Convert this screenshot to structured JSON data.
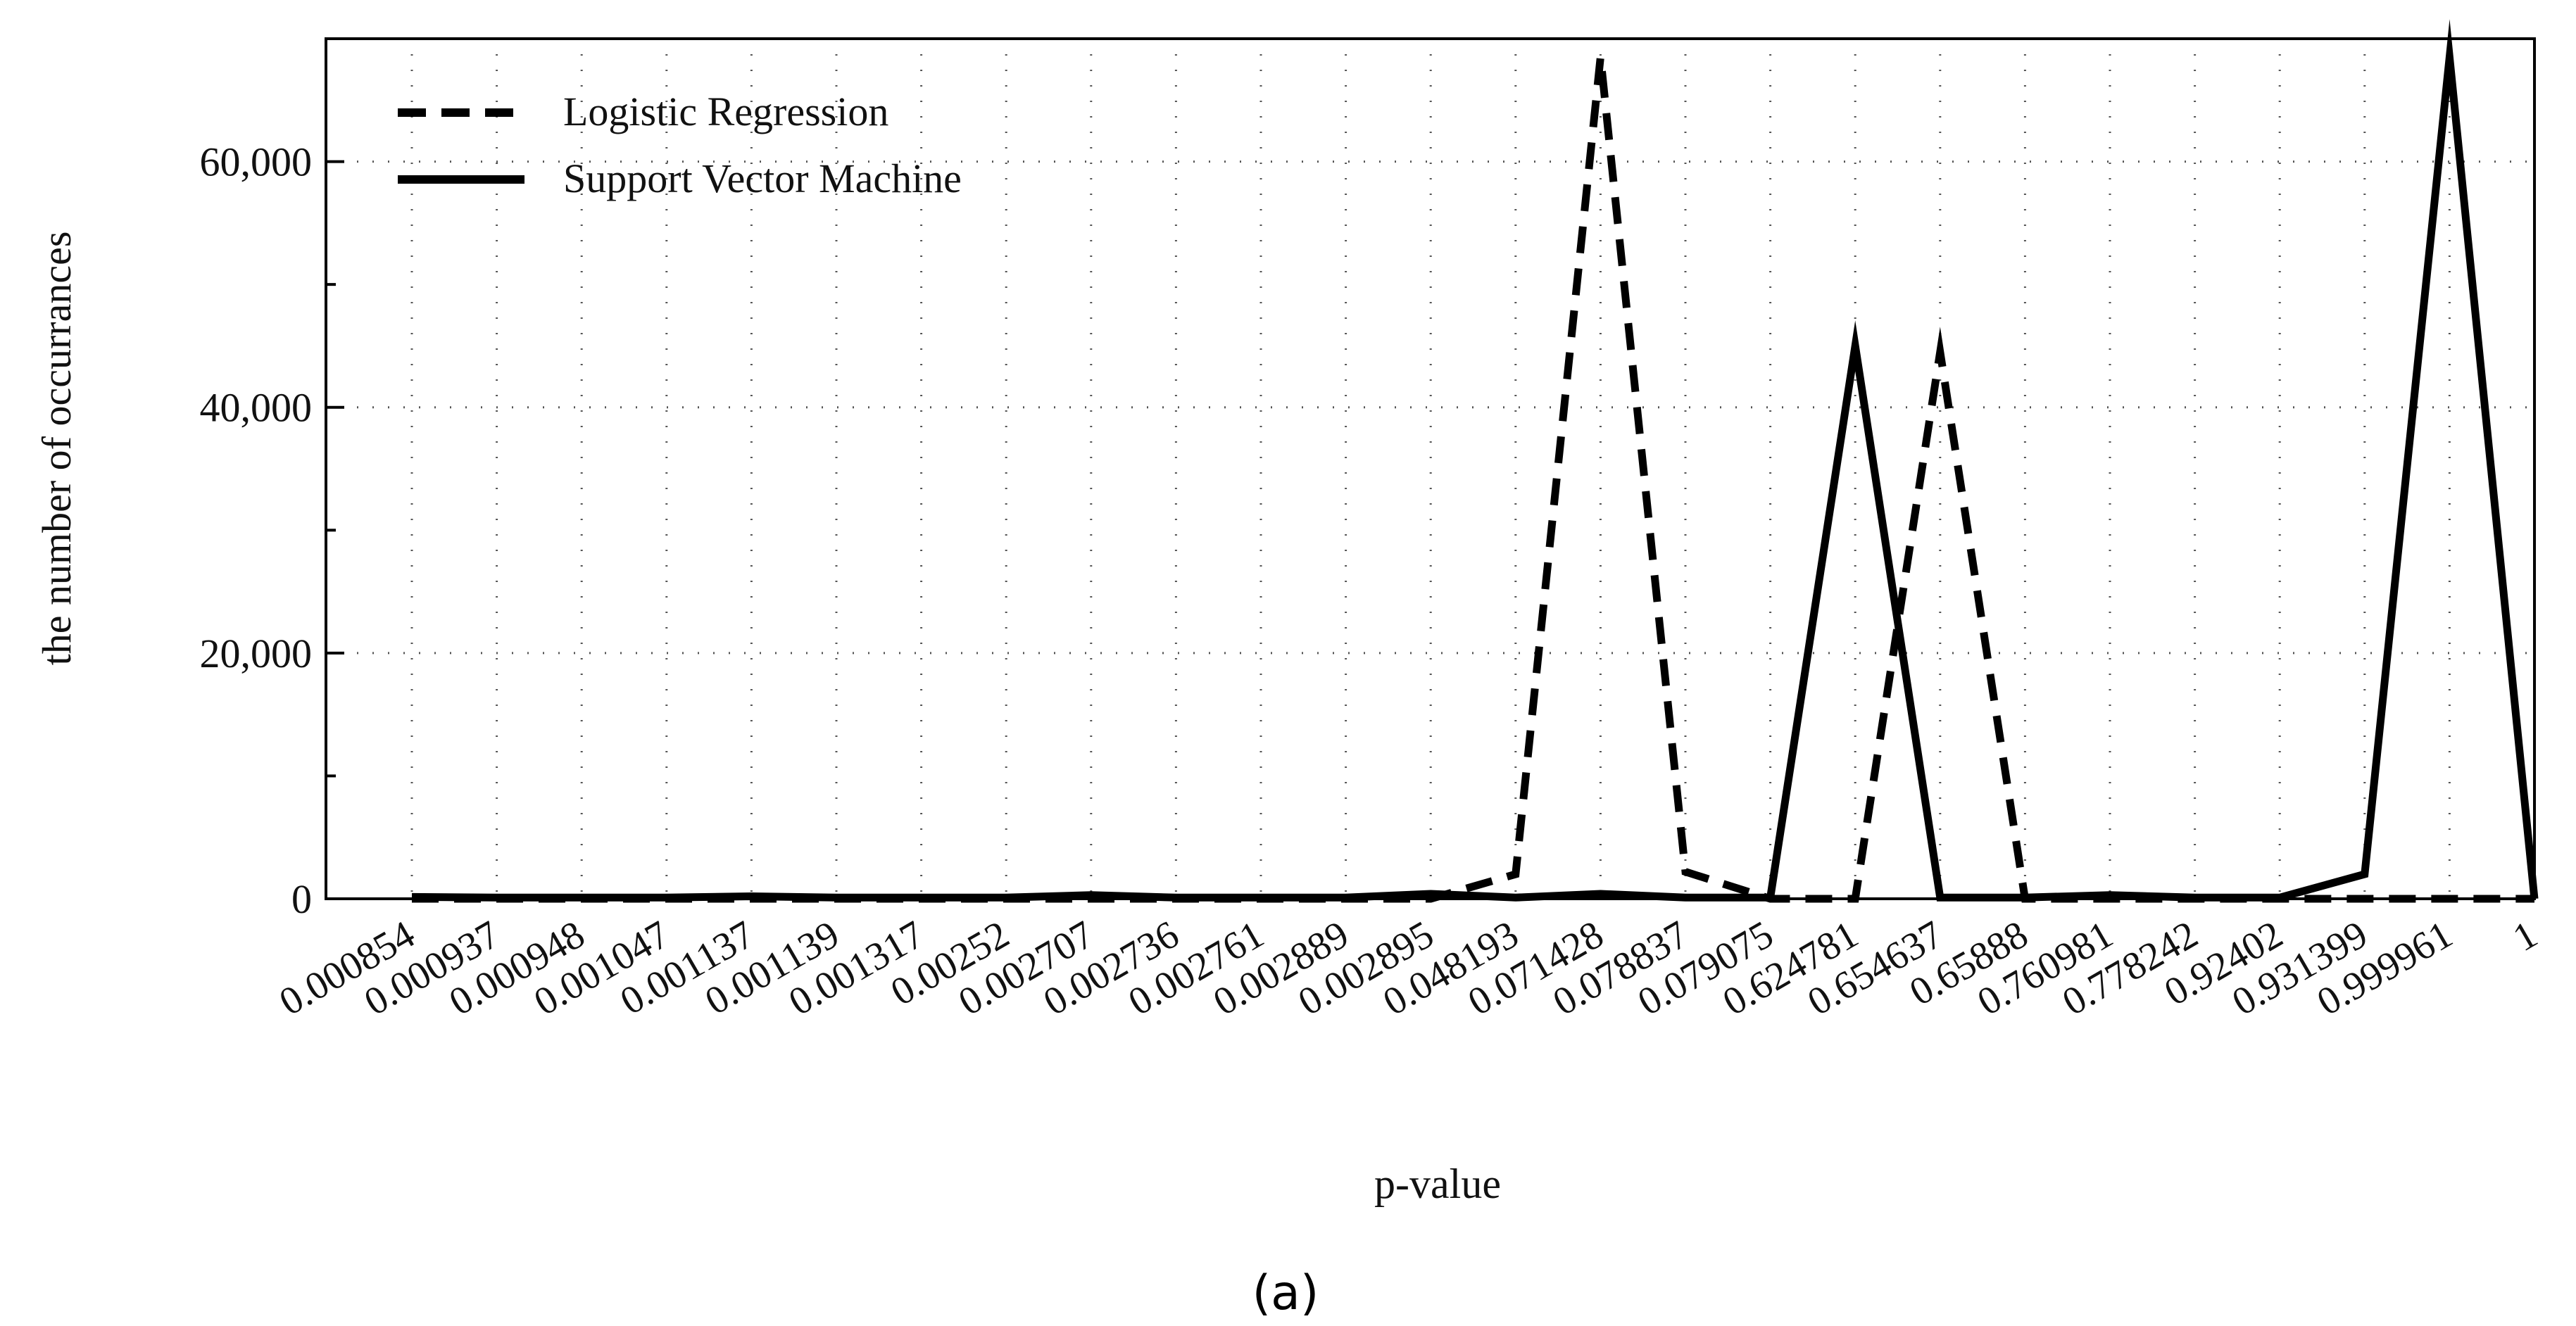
{
  "caption": "(a)",
  "chart_data": {
    "type": "line",
    "title": "",
    "xlabel": "p-value",
    "ylabel": "the number of occurrances",
    "categories": [
      "0.000854",
      "0.000937",
      "0.000948",
      "0.001047",
      "0.001137",
      "0.001139",
      "0.001317",
      "0.00252",
      "0.002707",
      "0.002736",
      "0.002761",
      "0.002889",
      "0.002895",
      "0.048193",
      "0.071428",
      "0.078837",
      "0.079075",
      "0.624781",
      "0.654637",
      "0.65888",
      "0.760981",
      "0.778242",
      "0.92402",
      "0.931399",
      "0.999961",
      "1"
    ],
    "ylim": [
      0,
      70000
    ],
    "yticks": [
      0,
      20000,
      40000,
      60000
    ],
    "ytick_labels": [
      "0",
      "20,000",
      "40,000",
      "60,000"
    ],
    "grid": true,
    "legend_position": "top-left",
    "series": [
      {
        "name": "Logistic Regression",
        "style": "dashed",
        "color": "#000000",
        "values": [
          0,
          0,
          0,
          0,
          0,
          0,
          0,
          0,
          0,
          0,
          0,
          0,
          0,
          2000,
          68500,
          2200,
          0,
          0,
          44500,
          0,
          0,
          0,
          0,
          0,
          0,
          0
        ]
      },
      {
        "name": "Support Vector Machine",
        "style": "solid",
        "color": "#000000",
        "values": [
          150,
          100,
          100,
          100,
          200,
          100,
          100,
          100,
          300,
          100,
          100,
          100,
          400,
          100,
          400,
          100,
          100,
          45000,
          100,
          100,
          300,
          100,
          100,
          2000,
          68500,
          0
        ]
      }
    ]
  }
}
